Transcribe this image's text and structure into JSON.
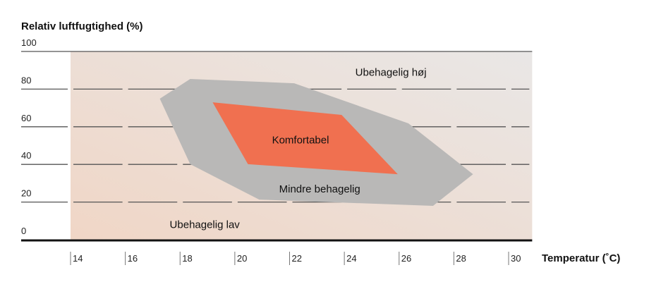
{
  "chart_data": {
    "type": "area",
    "title": "",
    "ylabel": "Relativ luftfugtighed (%)",
    "xlabel": "Temperatur (˚C)",
    "xlim": [
      14,
      30.86
    ],
    "ylim": [
      0,
      100
    ],
    "x_ticks": [
      14,
      16,
      18,
      20,
      22,
      24,
      26,
      28,
      30
    ],
    "y_ticks": [
      0,
      20,
      40,
      60,
      80,
      100
    ],
    "grid": true,
    "colors": {
      "background_low": "#f0d6c6",
      "background_high": "#e9e7e6",
      "less_comfortable": "#b9b8b7",
      "comfortable": "#f07050"
    },
    "series": [
      {
        "name": "Mindre behagelig",
        "points": [
          [
            17.26,
            74.9
          ],
          [
            18.37,
            85.4
          ],
          [
            22.17,
            83.1
          ],
          [
            26.34,
            61.8
          ],
          [
            28.7,
            34.8
          ],
          [
            27.24,
            18.0
          ],
          [
            20.89,
            21.3
          ],
          [
            18.37,
            40.1
          ]
        ]
      },
      {
        "name": "Komfortabel",
        "points": [
          [
            19.19,
            73.0
          ],
          [
            23.9,
            66.3
          ],
          [
            25.95,
            34.8
          ],
          [
            20.48,
            40.1
          ]
        ]
      }
    ],
    "annotations": [
      {
        "text": "Ubehagelig høj",
        "x": 25.7,
        "y": 89
      },
      {
        "text": "Komfortabel",
        "x": 22.4,
        "y": 53
      },
      {
        "text": "Mindre behagelig",
        "x": 23.1,
        "y": 27
      },
      {
        "text": "Ubehagelig lav",
        "x": 18.9,
        "y": 8
      }
    ]
  }
}
